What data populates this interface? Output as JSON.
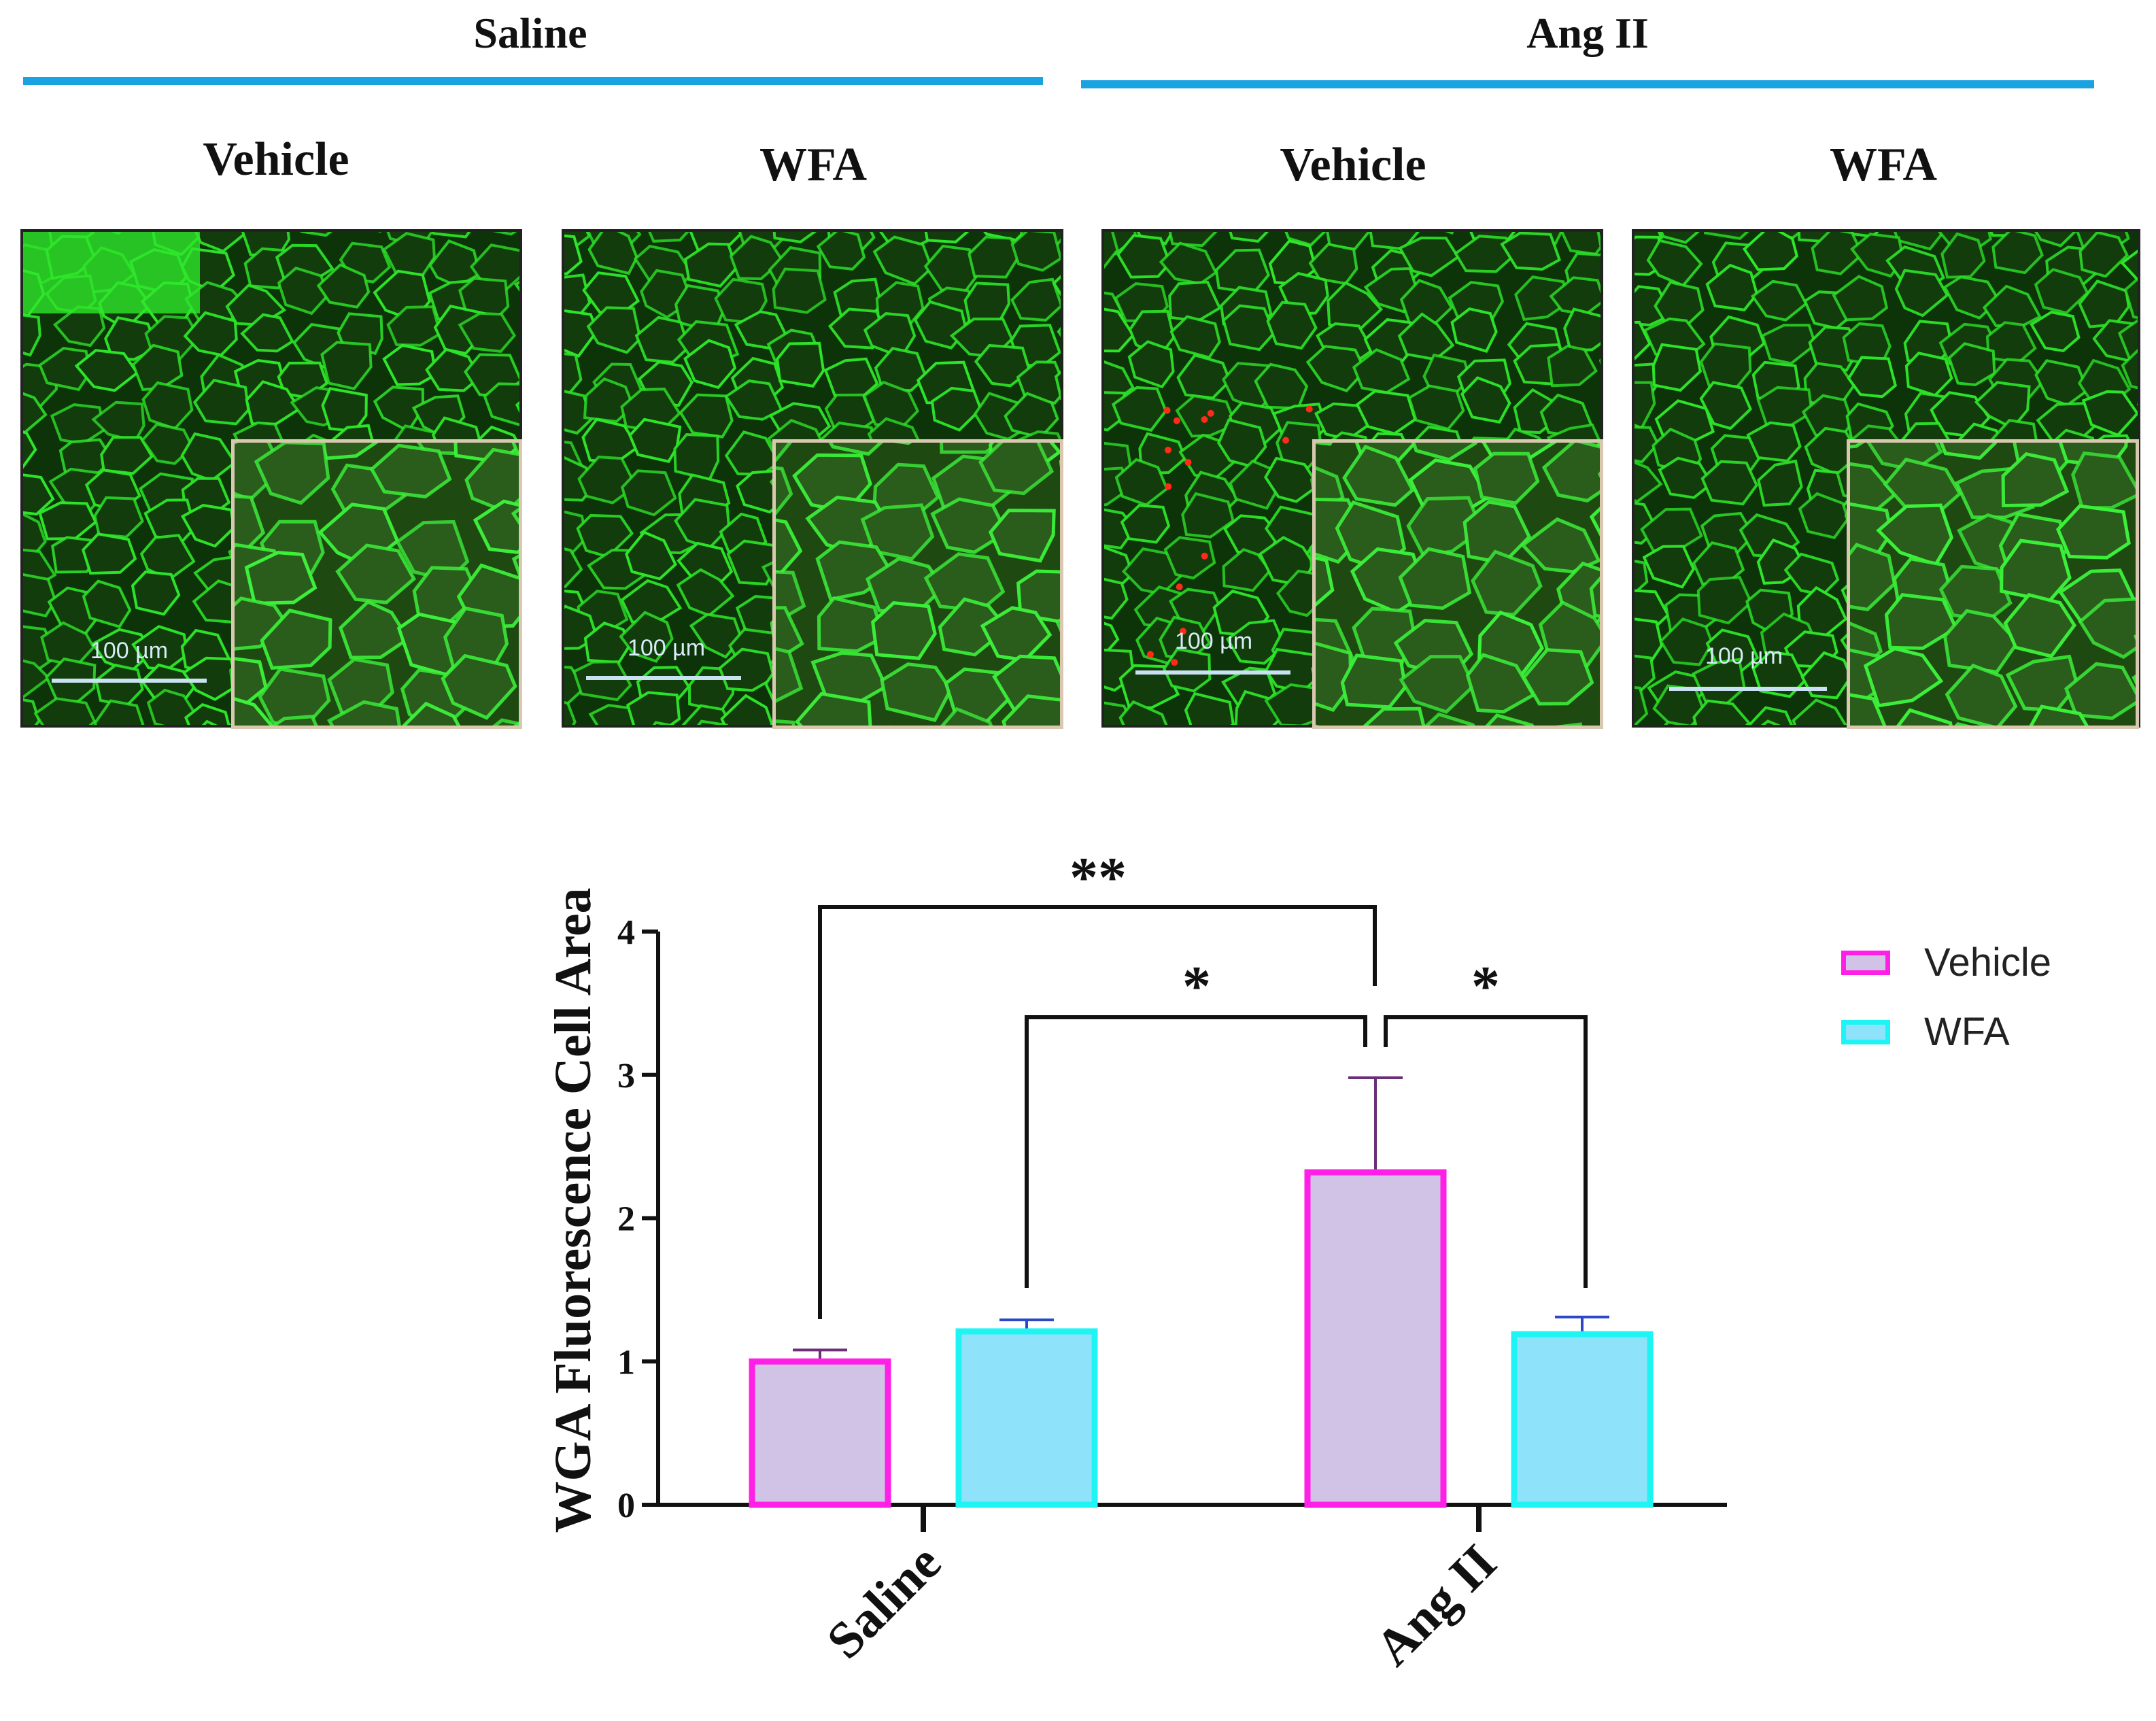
{
  "groups": [
    {
      "label": "Saline"
    },
    {
      "label": "Ang II"
    }
  ],
  "panels": [
    {
      "condition": "Vehicle",
      "scale_label": "100 µm"
    },
    {
      "condition": "WFA",
      "scale_label": "100 µm"
    },
    {
      "condition": "Vehicle",
      "scale_label": "100 µm"
    },
    {
      "condition": "WFA",
      "scale_label": "100 µm"
    }
  ],
  "colors": {
    "group_line": "#1aa3e0",
    "vehicle_fill": "#d0c3e6",
    "vehicle_edge": "#ff1fe6",
    "wfa_fill": "#8ee3fb",
    "wfa_edge": "#1ff4f4",
    "tissue": "#2ee62a"
  },
  "chart_data": {
    "type": "bar",
    "ylabel": "WGA Fluorescence Cell Area",
    "xlabel": "",
    "categories": [
      "Saline",
      "Ang II"
    ],
    "series": [
      {
        "name": "Vehicle",
        "values": [
          1.0,
          2.32
        ],
        "errors": [
          0.08,
          0.66
        ]
      },
      {
        "name": "WFA",
        "values": [
          1.21,
          1.19
        ],
        "errors": [
          0.08,
          0.12
        ]
      }
    ],
    "ylim": [
      0,
      4
    ],
    "yticks": [
      0,
      1,
      2,
      3,
      4
    ],
    "legend": "top-right",
    "significance": [
      {
        "label": "**",
        "from": "Saline Vehicle",
        "to": "Ang II Vehicle"
      },
      {
        "label": "*",
        "from": "Saline WFA",
        "to": "Ang II Vehicle"
      },
      {
        "label": "*",
        "from": "Ang II Vehicle",
        "to": "Ang II WFA"
      }
    ]
  }
}
